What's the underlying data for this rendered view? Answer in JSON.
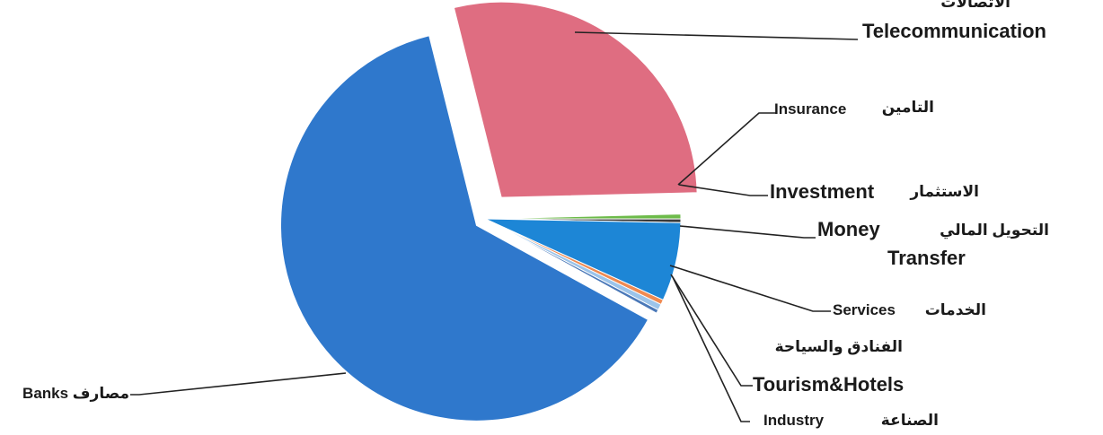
{
  "chart_data": {
    "type": "pie",
    "title": "",
    "legend": "none",
    "slices": [
      {
        "label_ar": "الاتصالات",
        "label_en": "Telecommunication",
        "value": 28.5,
        "color": "#df6d81"
      },
      {
        "label_ar": "التامين",
        "label_en": "Insurance",
        "value": 0.4,
        "color": "#6dbb4a"
      },
      {
        "label_ar": "الاستثمار",
        "label_en": "Investment",
        "value": 0.3,
        "color": "#3a3a3a"
      },
      {
        "label_ar": "التحويل المالي",
        "label_en": "Money Transfer",
        "value": 6.5,
        "color": "#1d86d6"
      },
      {
        "label_ar": "الخدمات",
        "label_en": "Services",
        "value": 0.4,
        "color": "#ef8a52"
      },
      {
        "label_ar": "الفنادق والسياحة",
        "label_en": "Tourism&Hotels",
        "value": 0.5,
        "color": "#9cc4ea"
      },
      {
        "label_ar": "الصناعة",
        "label_en": "Industry",
        "value": 0.3,
        "color": "#4a78b8"
      },
      {
        "label_ar": "مصارف",
        "label_en": "Banks",
        "value": 63.1,
        "color": "#2f78cc"
      }
    ]
  }
}
